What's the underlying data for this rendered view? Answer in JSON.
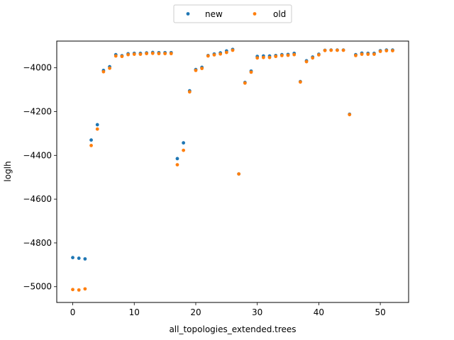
{
  "chart_data": {
    "type": "scatter",
    "title": "",
    "xlabel": "all_topologies_extended.trees",
    "ylabel": "loglh",
    "xlim": [
      -2.6,
      54.6
    ],
    "ylim": [
      -5070,
      -4865
    ],
    "ylim_full": [
      -5072,
      -3878
    ],
    "xticks": [
      0,
      10,
      20,
      30,
      40,
      50
    ],
    "yticks": [
      -5000,
      -4800,
      -4600,
      -4400,
      -4200,
      -4000
    ],
    "legend": {
      "placement": "top-center",
      "columns": 2
    },
    "grid": false,
    "series": [
      {
        "name": "new",
        "color": "#1f77b4",
        "x": [
          0,
          1,
          2,
          3,
          4,
          5,
          6,
          7,
          8,
          9,
          10,
          11,
          12,
          13,
          14,
          15,
          16,
          17,
          18,
          19,
          20,
          21,
          22,
          23,
          24,
          25,
          26,
          27,
          28,
          29,
          30,
          31,
          32,
          33,
          34,
          35,
          36,
          37,
          38,
          39,
          40,
          41,
          42,
          43,
          44,
          45,
          46,
          47,
          48,
          49,
          50,
          51,
          52
        ],
        "y": [
          -4867,
          -4870,
          -4873,
          -4330,
          -4260,
          -4012,
          -3995,
          -3940,
          -3945,
          -3936,
          -3934,
          -3934,
          -3932,
          -3930,
          -3931,
          -3931,
          -3931,
          -4415,
          -4343,
          -4105,
          -4008,
          -3998,
          -3944,
          -3937,
          -3932,
          -3923,
          -3916,
          -4485,
          -4067,
          -4015,
          -3948,
          -3946,
          -3946,
          -3944,
          -3940,
          -3939,
          -3934,
          -4063,
          -3968,
          -3951,
          -3938,
          -3920,
          -3919,
          -3919,
          -3919,
          -4212,
          -3940,
          -3933,
          -3934,
          -3934,
          -3922,
          -3919,
          -3919
        ]
      },
      {
        "name": "old",
        "color": "#ff7f0e",
        "x": [
          0,
          1,
          2,
          3,
          4,
          5,
          6,
          7,
          8,
          9,
          10,
          11,
          12,
          13,
          14,
          15,
          16,
          17,
          18,
          19,
          20,
          21,
          22,
          23,
          24,
          25,
          26,
          27,
          28,
          29,
          30,
          31,
          32,
          33,
          34,
          35,
          36,
          37,
          38,
          39,
          40,
          41,
          42,
          43,
          44,
          45,
          46,
          47,
          48,
          49,
          50,
          51,
          52
        ],
        "y": [
          -5013,
          -5015,
          -5010,
          -4355,
          -4280,
          -4018,
          -4002,
          -3946,
          -3948,
          -3940,
          -3938,
          -3938,
          -3935,
          -3934,
          -3935,
          -3935,
          -3935,
          -4443,
          -4377,
          -4110,
          -4012,
          -4003,
          -3946,
          -3941,
          -3937,
          -3930,
          -3920,
          -4485,
          -4070,
          -4020,
          -3955,
          -3953,
          -3953,
          -3948,
          -3944,
          -3943,
          -3940,
          -4065,
          -3972,
          -3955,
          -3941,
          -3921,
          -3920,
          -3920,
          -3920,
          -4214,
          -3944,
          -3938,
          -3938,
          -3938,
          -3925,
          -3922,
          -3922
        ]
      }
    ]
  }
}
